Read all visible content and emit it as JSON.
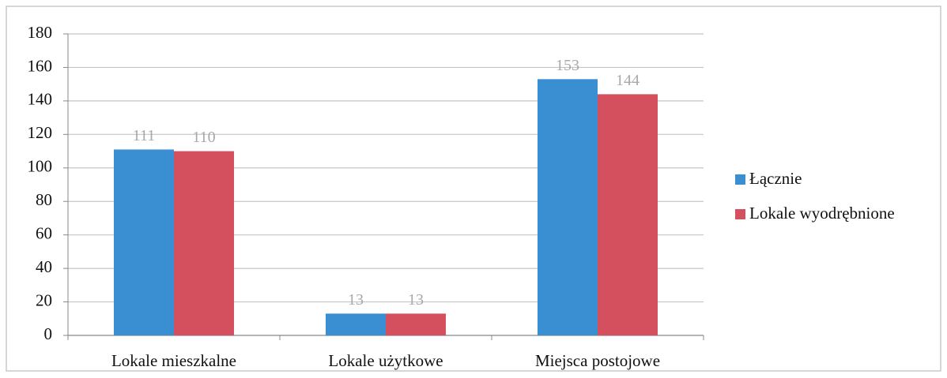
{
  "chart_data": {
    "type": "bar",
    "categories": [
      "Lokale mieszkalne",
      "Lokale użytkowe",
      "Miejsca postojowe"
    ],
    "series": [
      {
        "name": "Łącznie",
        "color": "#3a8fd2",
        "values": [
          111,
          13,
          153
        ]
      },
      {
        "name": "Lokale wyodrębnione",
        "color": "#d4505f",
        "values": [
          110,
          13,
          144
        ]
      }
    ],
    "ylim": [
      0,
      180
    ],
    "yticks": [
      0,
      20,
      40,
      60,
      80,
      100,
      120,
      140,
      160,
      180
    ],
    "grid": true,
    "legend": "right"
  }
}
